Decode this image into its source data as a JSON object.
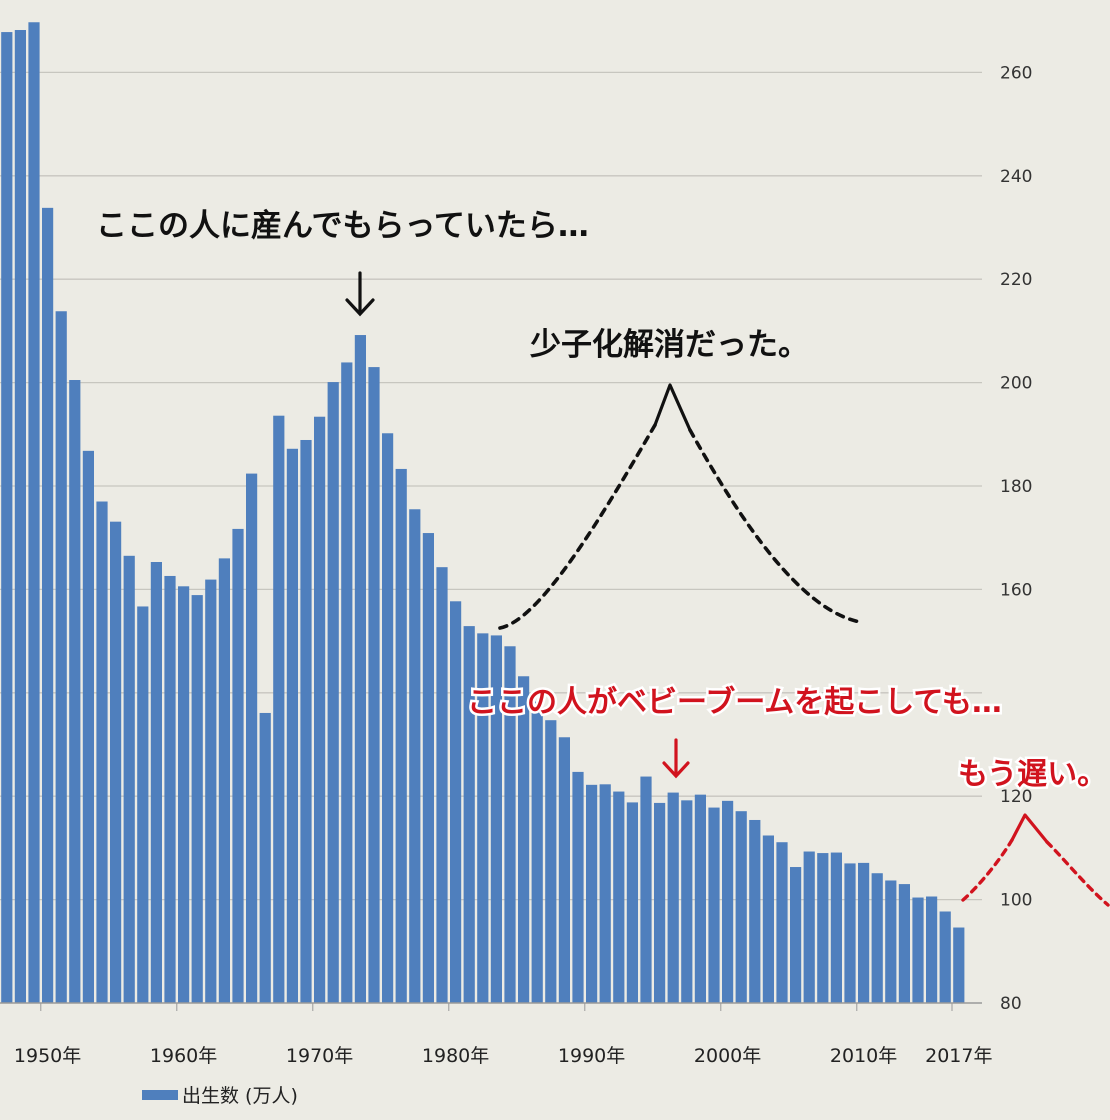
{
  "chart_data": {
    "type": "bar",
    "x": [
      1947,
      1948,
      1949,
      1950,
      1951,
      1952,
      1953,
      1954,
      1955,
      1956,
      1957,
      1958,
      1959,
      1960,
      1961,
      1962,
      1963,
      1964,
      1965,
      1966,
      1967,
      1968,
      1969,
      1970,
      1971,
      1972,
      1973,
      1974,
      1975,
      1976,
      1977,
      1978,
      1979,
      1980,
      1981,
      1982,
      1983,
      1984,
      1985,
      1986,
      1987,
      1988,
      1989,
      1990,
      1991,
      1992,
      1993,
      1994,
      1995,
      1996,
      1997,
      1998,
      1999,
      2000,
      2001,
      2002,
      2003,
      2004,
      2005,
      2006,
      2007,
      2008,
      2009,
      2010,
      2011,
      2012,
      2013,
      2014,
      2015,
      2016,
      2017
    ],
    "series": [
      {
        "name": "出生数 (万人)",
        "values": [
          267.8,
          268.2,
          269.7,
          233.8,
          213.8,
          200.5,
          186.8,
          177.0,
          173.1,
          166.5,
          156.7,
          165.3,
          162.6,
          160.6,
          158.9,
          161.9,
          166.0,
          171.7,
          182.4,
          136.1,
          193.6,
          187.2,
          188.9,
          193.4,
          200.1,
          203.9,
          209.2,
          203.0,
          190.2,
          183.3,
          175.5,
          170.9,
          164.3,
          157.7,
          152.9,
          151.5,
          151.1,
          149.0,
          143.2,
          138.3,
          134.7,
          131.4,
          124.7,
          122.2,
          122.3,
          120.9,
          118.8,
          123.8,
          118.7,
          120.7,
          119.2,
          120.3,
          117.8,
          119.1,
          117.1,
          115.4,
          112.4,
          111.1,
          106.3,
          109.3,
          109.0,
          109.1,
          107.0,
          107.1,
          105.1,
          103.7,
          103.0,
          100.4,
          100.6,
          97.7,
          94.6
        ]
      }
    ],
    "y_axis": {
      "range": [
        80,
        270
      ],
      "ticks": [
        80,
        100,
        120,
        140,
        160,
        180,
        200,
        220,
        240,
        260
      ],
      "position": "right",
      "visible_tick_labels": [
        "80",
        "100",
        "120",
        "160",
        "180",
        "200",
        "220",
        "240",
        "260"
      ]
    },
    "x_tick_labels": [
      {
        "year": 1950,
        "label": "1950年"
      },
      {
        "year": 1960,
        "label": "1960年"
      },
      {
        "year": 1970,
        "label": "1970年"
      },
      {
        "year": 1980,
        "label": "1980年"
      },
      {
        "year": 1990,
        "label": "1990年"
      },
      {
        "year": 2000,
        "label": "2000年"
      },
      {
        "year": 2010,
        "label": "2010年"
      },
      {
        "year": 2017,
        "label": "2017年"
      }
    ],
    "grid": true,
    "legend": {
      "label": "出生数 (万人)",
      "placement": "bottom-left"
    },
    "bar_color": "#4f7fbd",
    "annotations": {
      "top_text": "ここの人に産んでもらっていたら…",
      "middle_text": "少子化解消だった。",
      "red_text_1": "ここの人がベビーブームを起こしても…",
      "red_text_2": "もう遅い。",
      "black_color": "#111111",
      "red_color": "#d1131e"
    }
  }
}
